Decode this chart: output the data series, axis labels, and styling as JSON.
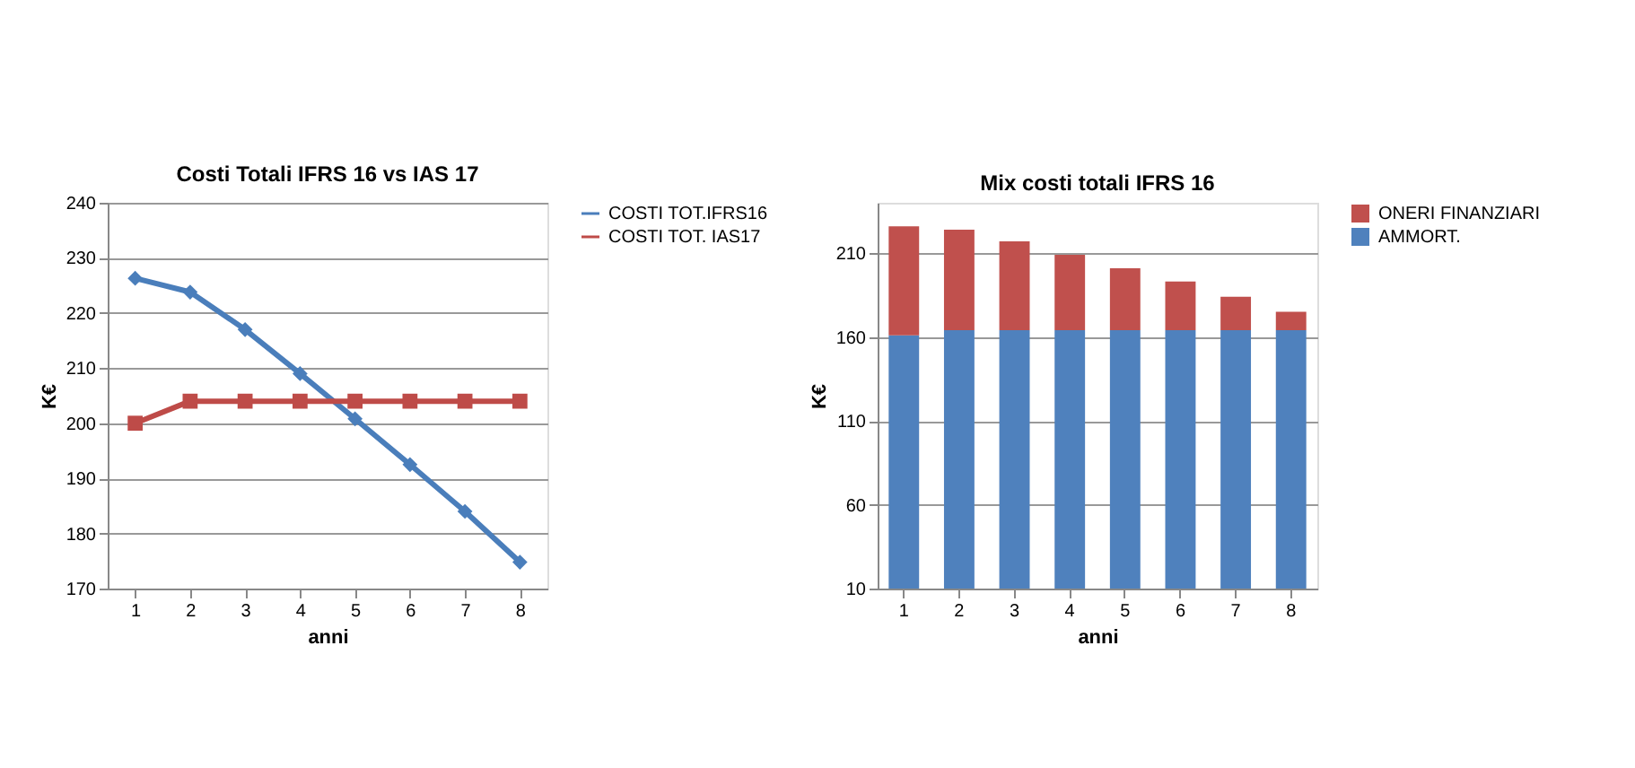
{
  "chart_data": [
    {
      "type": "line",
      "title": "Costi Totali IFRS 16 vs IAS 17",
      "xlabel": "anni",
      "ylabel": "K€",
      "categories": [
        "1",
        "2",
        "3",
        "4",
        "5",
        "6",
        "7",
        "8"
      ],
      "series": [
        {
          "name": "COSTI TOT.IFRS16",
          "color": "#4a7ebb",
          "marker": "diamond",
          "values": [
            226.3,
            223.8,
            217,
            209,
            200.8,
            192.5,
            184,
            174.8
          ]
        },
        {
          "name": "COSTI TOT. IAS17",
          "color": "#be4b48",
          "marker": "square",
          "values": [
            200,
            204,
            204,
            204,
            204,
            204,
            204,
            204
          ]
        }
      ],
      "ylim": [
        170,
        240
      ],
      "yticks": [
        170,
        180,
        190,
        200,
        210,
        220,
        230,
        240
      ],
      "grid": "y",
      "legend": "right"
    },
    {
      "type": "bar",
      "stacked": true,
      "title": "Mix costi totali IFRS 16",
      "xlabel": "anni",
      "ylabel": "K€",
      "categories": [
        "1",
        "2",
        "3",
        "4",
        "5",
        "6",
        "7",
        "8"
      ],
      "series": [
        {
          "name": "AMMORT.",
          "color": "#4f81bd",
          "values": [
            161,
            164,
            164,
            164,
            164,
            164,
            164,
            164
          ]
        },
        {
          "name": "ONERI FINANZIARI",
          "color": "#c0504d",
          "values": [
            65,
            60,
            53,
            45,
            37,
            29,
            20,
            11
          ]
        }
      ],
      "ylim": [
        10,
        240
      ],
      "yticks": [
        10,
        60,
        110,
        160,
        210
      ],
      "grid": "y",
      "legend": "right"
    }
  ]
}
